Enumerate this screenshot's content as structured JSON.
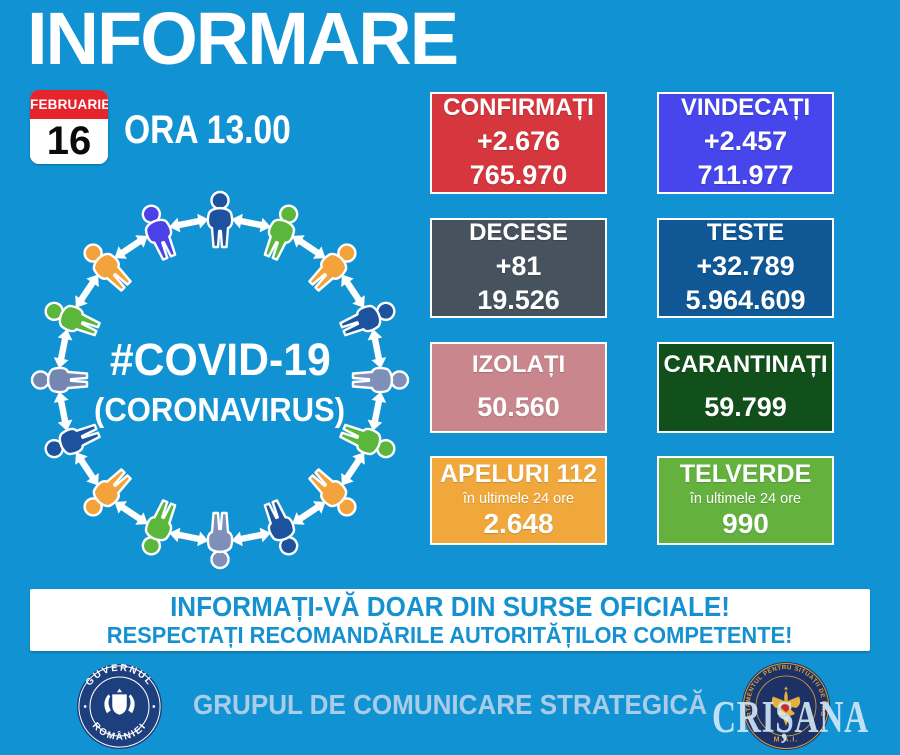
{
  "title": "INFORMARE",
  "date": {
    "month": "FEBRUARIE",
    "day": "16"
  },
  "time_label": "ORA 13.00",
  "diagram": {
    "line1": "#COVID-19",
    "line2": "(CORONAVIRUS)",
    "arrow_color": "#FFFFFF",
    "figure_colors": [
      "#1C529E",
      "#5BB63C",
      "#F4A33C",
      "#1C529E",
      "#7E90BA",
      "#5BB63C",
      "#F4A33C",
      "#1C529E",
      "#7E90BA",
      "#5BB63C",
      "#F4A33C",
      "#1C529E",
      "#7486B2",
      "#5BB63C",
      "#F4A33C",
      "#4A41E8"
    ]
  },
  "cards": [
    {
      "title": "CONFIRMAȚI",
      "delta": "+2.676",
      "total": "765.970",
      "bg": "#D6373E"
    },
    {
      "title": "VINDECAȚI",
      "delta": "+2.457",
      "total": "711.977",
      "bg": "#4646EC"
    },
    {
      "title": "DECESE",
      "delta": "+81",
      "total": "19.526",
      "bg": "#46535F"
    },
    {
      "title": "TESTE",
      "delta": "+32.789",
      "total": "5.964.609",
      "bg": "#0F5795"
    },
    {
      "title": "IZOLAȚI",
      "total": "50.560",
      "bg": "#C9868C"
    },
    {
      "title": "CARANTINAȚI",
      "total": "59.799",
      "bg": "#11501B"
    },
    {
      "title": "APELURI 112",
      "subtitle": "în ultimele 24 ore",
      "total": "2.648",
      "bg": "#F0A83C"
    },
    {
      "title": "TELVERDE",
      "subtitle": "în ultimele 24 ore",
      "total": "990",
      "bg": "#64B13E"
    }
  ],
  "banner": {
    "line1": "INFORMAȚI-VĂ DOAR DIN SURSE OFICIALE!",
    "line2": "RESPECTAȚI RECOMANDĂRILE AUTORITĂȚILOR COMPETENTE!"
  },
  "footer": {
    "gov_seal_top": "GUVERNUL",
    "gov_seal_bottom": "ROMÂNIEI",
    "group_label": "GRUPUL DE COMUNICARE STRATEGICĂ",
    "dsu_seal_ring": "DEPARTAMENTUL PENTRU SITUAȚII DE URGENȚĂ",
    "dsu_seal_bottom": "M.A.I.",
    "watermark": "CRIȘANA"
  },
  "colors": {
    "background": "#1193D3",
    "banner_text": "#1691D0",
    "calendar_red": "#E6242E",
    "footer_text": "#A9CCE9",
    "seal_navy": "#1E3F7E",
    "seal_gold": "#D9A43A"
  }
}
